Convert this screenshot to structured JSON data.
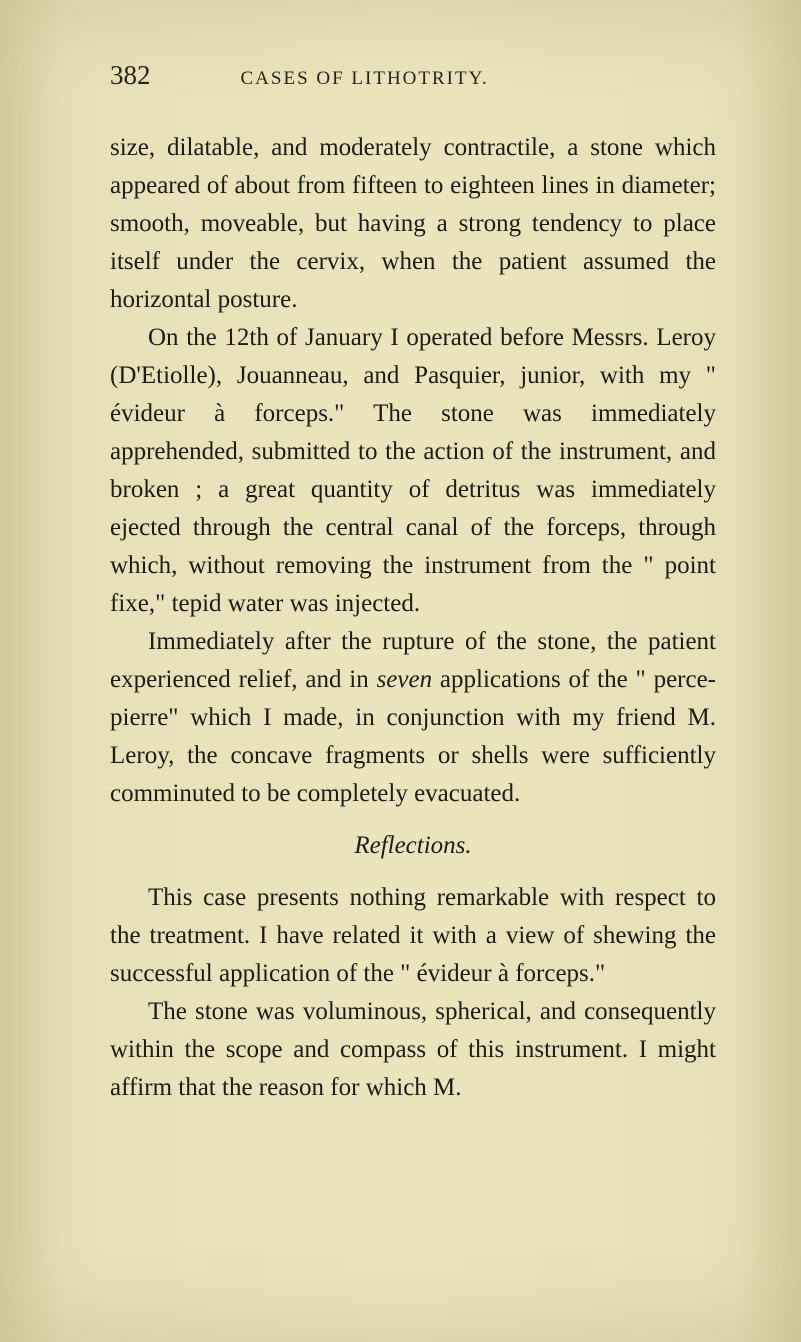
{
  "page": {
    "number": "382",
    "running_title": "CASES OF LITHOTRITY."
  },
  "paragraphs": {
    "p1": "size, dilatable, and moderately contractile, a stone which appeared of about from fifteen to eighteen lines in diameter; smooth, moveable, but having a strong tendency to place itself under the cervix, when the patient assumed the horizontal posture.",
    "p2_a": "On the 12th of January I operated before Messrs. Leroy (D'Etiolle), Jouanneau, and Pas­quier, junior, with my \" évideur à forceps.\" The stone was immediately apprehended, submitted to the action of the instrument, and broken ; a great quantity of detritus was immediately ejected through the central canal of the forceps, through which, without removing the instrument from the \" point fixe,\" tepid water was injected.",
    "p3_a": "Immediately after the rupture of the stone, the patient experienced relief, and in ",
    "p3_italic": "seven",
    "p3_b": " applica­tions of the \" perce-pierre\" which I made, in conjunction with my friend M. Leroy, the con­cave fragments or shells were sufficiently com­minuted to be completely evacuated.",
    "heading": "Reflections.",
    "p4": "This case presents nothing remarkable with respect to the treatment. I have related it with a view of shewing the successful application of the \" évideur à forceps.\"",
    "p5": "The stone was voluminous, spherical, and conse­quently within the scope and compass of this instru­ment. I might affirm that the reason for which M."
  },
  "style": {
    "background_color": "#e8e0b8",
    "text_color": "#1f1b12",
    "body_fontsize": 25,
    "header_fontsize": 27,
    "running_title_fontsize": 19,
    "line_height": 1.52
  }
}
